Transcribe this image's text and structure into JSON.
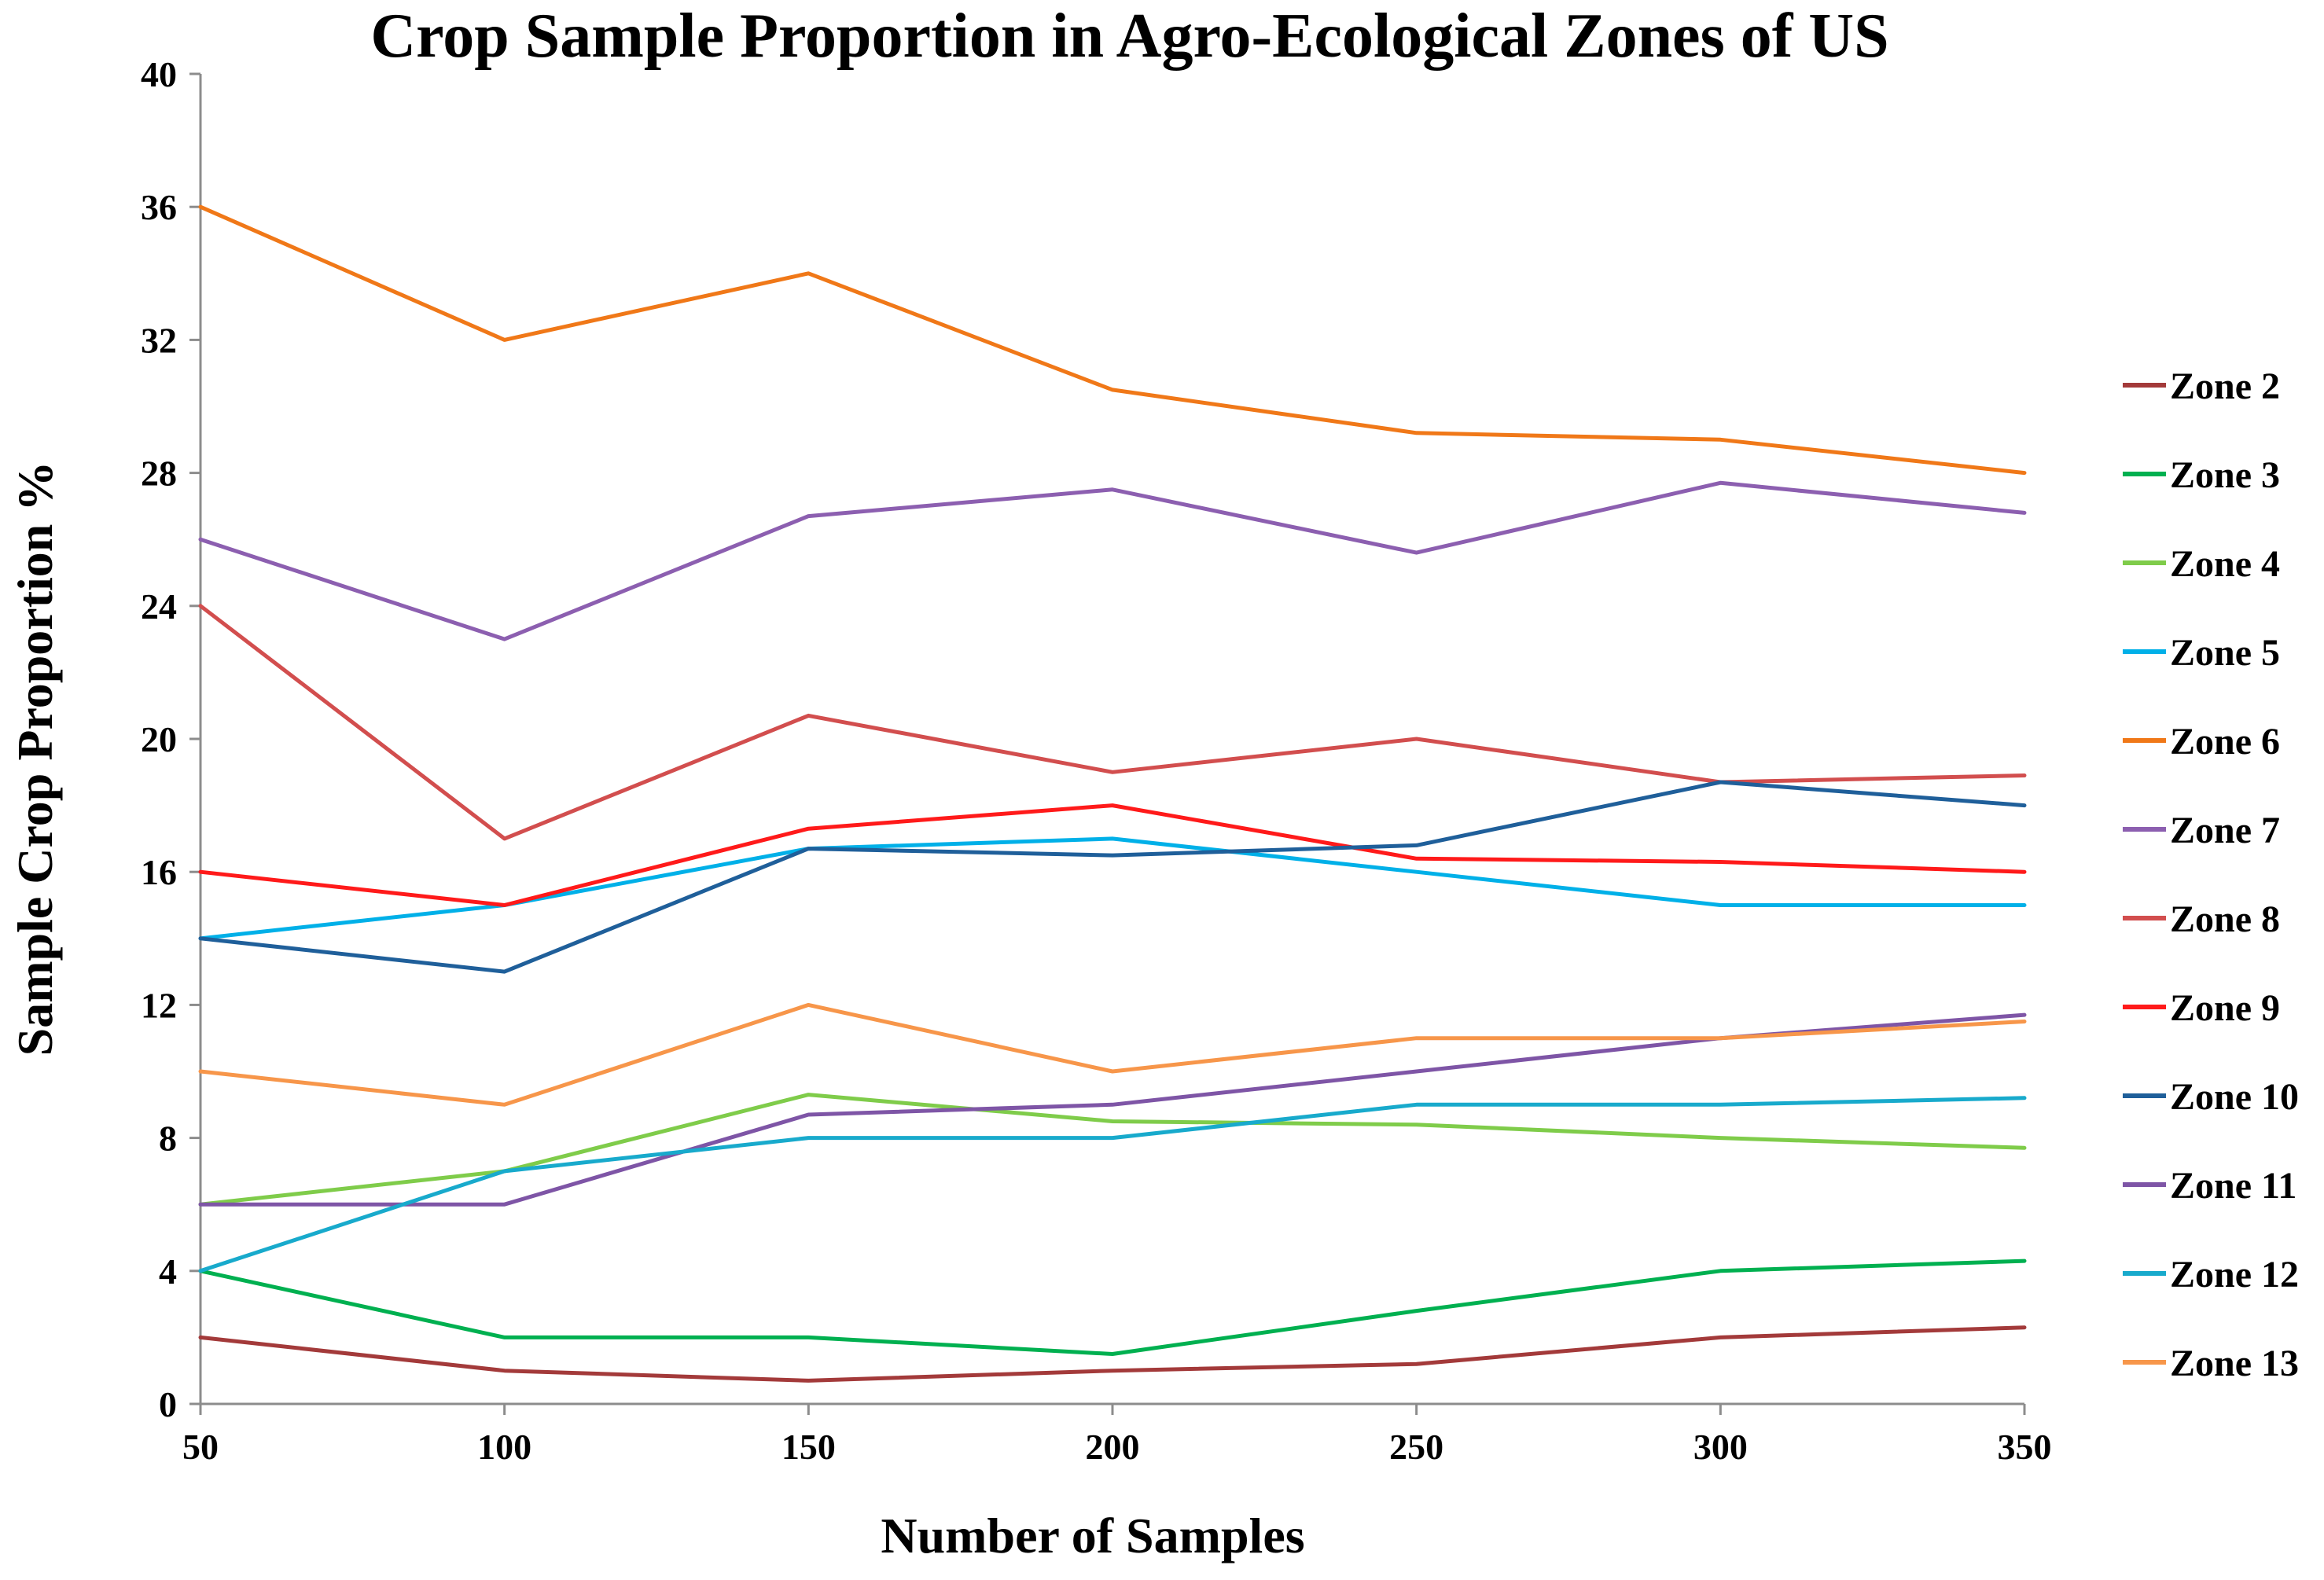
{
  "chart_data": {
    "type": "line",
    "title": "Crop Sample Proportion in Agro-Ecological Zones of US",
    "xlabel": "Number of Samples",
    "ylabel": "Sample Crop Proportion %",
    "x": [
      50,
      100,
      150,
      200,
      250,
      300,
      350
    ],
    "xticks": [
      "50",
      "100",
      "150",
      "200",
      "250",
      "300",
      "350"
    ],
    "yticks": [
      "0",
      "4",
      "8",
      "12",
      "16",
      "20",
      "24",
      "28",
      "32",
      "36",
      "40"
    ],
    "ylim": [
      0,
      40
    ],
    "grid": false,
    "legend_position": "right",
    "series": [
      {
        "name": "Zone 2",
        "color": "#a33a3a",
        "values": [
          2,
          1,
          0.7,
          1,
          1.2,
          2,
          2.3
        ]
      },
      {
        "name": "Zone 3",
        "color": "#00b050",
        "values": [
          4,
          2,
          2,
          1.5,
          2.8,
          4,
          4.3
        ]
      },
      {
        "name": "Zone 4",
        "color": "#7fcc4a",
        "values": [
          6,
          7,
          9.3,
          8.5,
          8.4,
          8,
          7.7
        ]
      },
      {
        "name": "Zone 5",
        "color": "#00b0e8",
        "values": [
          14,
          15,
          16.7,
          17,
          16,
          15,
          15
        ]
      },
      {
        "name": "Zone 6",
        "color": "#f07818",
        "values": [
          36,
          32,
          34,
          30.5,
          29.2,
          29,
          28
        ]
      },
      {
        "name": "Zone 7",
        "color": "#8c5fb0",
        "values": [
          26,
          23,
          26.7,
          27.5,
          25.6,
          27.7,
          26.8
        ]
      },
      {
        "name": "Zone 8",
        "color": "#d24e4e",
        "values": [
          24,
          17,
          20.7,
          19,
          20,
          18.7,
          18.9
        ]
      },
      {
        "name": "Zone 9",
        "color": "#ff1a1a",
        "values": [
          16,
          15,
          17.3,
          18,
          16.4,
          16.3,
          16
        ]
      },
      {
        "name": "Zone 10",
        "color": "#1f5f9a",
        "values": [
          14,
          13,
          16.7,
          16.5,
          16.8,
          18.7,
          18
        ]
      },
      {
        "name": "Zone 11",
        "color": "#7e55a6",
        "values": [
          6,
          6,
          8.7,
          9,
          10,
          11,
          11.7
        ]
      },
      {
        "name": "Zone 12",
        "color": "#18aacc",
        "values": [
          4,
          7,
          8,
          8,
          9,
          9,
          9.2
        ]
      },
      {
        "name": "Zone 13",
        "color": "#f7964a",
        "values": [
          10,
          9,
          12,
          10,
          11,
          11,
          11.5
        ]
      }
    ]
  }
}
